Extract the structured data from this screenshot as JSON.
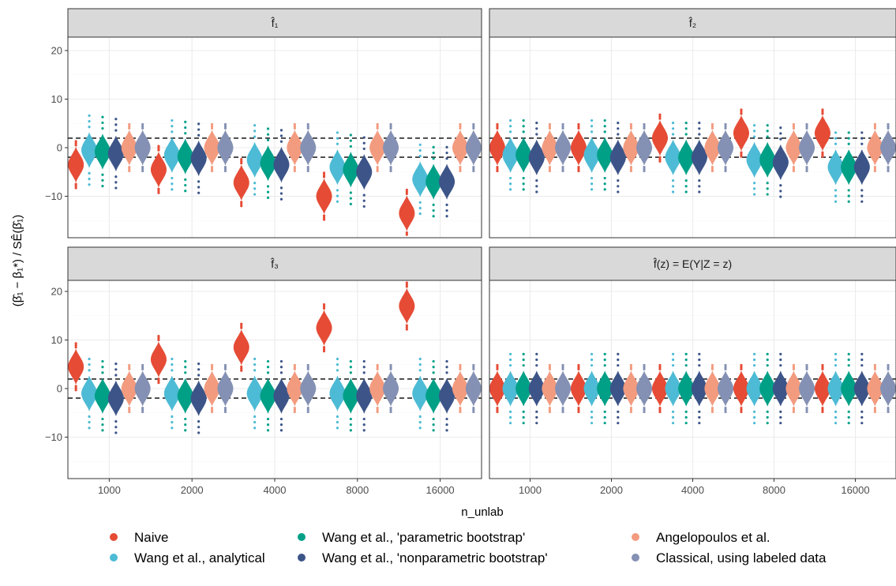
{
  "chart_data": {
    "type": "violin",
    "xlabel": "n_unlab",
    "ylabel": "(β̂₁ − β₁*) / SÊ(β̂₁)",
    "reference_lines": [
      -1.96,
      1.96
    ],
    "ylim": [
      -19,
      22
    ],
    "y_ticks": [
      -10,
      0,
      10,
      20
    ],
    "categories": [
      "1000",
      "2000",
      "4000",
      "8000",
      "16000"
    ],
    "methods": [
      {
        "name": "Naive",
        "color": "#E64B35"
      },
      {
        "name": "Wang et al., analytical",
        "color": "#4DBBD5"
      },
      {
        "name": "Wang et al., 'parametric bootstrap'",
        "color": "#00A087"
      },
      {
        "name": "Wang et al., 'nonparametric bootstrap'",
        "color": "#3C5488"
      },
      {
        "name": "Angelopoulos et al.",
        "color": "#F39B7F"
      },
      {
        "name": "Classical, using labeled data",
        "color": "#8491B4"
      }
    ],
    "panels": [
      {
        "strip": "f̂₁",
        "centers": [
          [
            -3.5,
            -0.5,
            -0.8,
            -1.2,
            0,
            0
          ],
          [
            -4.5,
            -1.5,
            -1.8,
            -2.2,
            0,
            0
          ],
          [
            -7.2,
            -2.5,
            -3.2,
            -3.5,
            0,
            0
          ],
          [
            -10,
            -4,
            -4.5,
            -5,
            0,
            0
          ],
          [
            -13.5,
            -6.5,
            -7,
            -7,
            0,
            0
          ]
        ]
      },
      {
        "strip": "f̂₂",
        "centers": [
          [
            0,
            -1.5,
            -1.5,
            -2,
            0,
            0
          ],
          [
            0,
            -1.5,
            -1.5,
            -2,
            0,
            0
          ],
          [
            2,
            -2,
            -2,
            -2,
            0,
            0
          ],
          [
            3,
            -2.5,
            -2.5,
            -3,
            0,
            0
          ],
          [
            3,
            -4,
            -4,
            -4,
            0,
            0
          ]
        ]
      },
      {
        "strip": "f̂₃",
        "centers": [
          [
            4.5,
            -1,
            -1.5,
            -2,
            0,
            0
          ],
          [
            6,
            -1,
            -1.5,
            -2,
            0,
            0
          ],
          [
            8.5,
            -1,
            -1.5,
            -1.5,
            0,
            0
          ],
          [
            12.5,
            -1,
            -1.5,
            -1.5,
            0,
            0
          ],
          [
            17,
            -1,
            -1.5,
            -1.5,
            0,
            0
          ]
        ]
      },
      {
        "strip": "f̂(z) = E(Y|Z = z)",
        "centers": [
          [
            0,
            0,
            0,
            0,
            0,
            0
          ],
          [
            0,
            0,
            0,
            0,
            0,
            0
          ],
          [
            0,
            0,
            0,
            0,
            0,
            0
          ],
          [
            0,
            0,
            0,
            0,
            0,
            0
          ],
          [
            0,
            0,
            0,
            0,
            0,
            0
          ]
        ]
      }
    ],
    "legend": {
      "position": "bottom"
    }
  }
}
